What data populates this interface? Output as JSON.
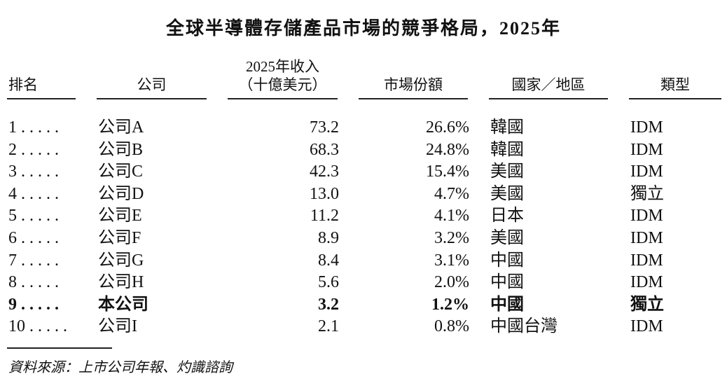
{
  "title": "全球半導體存儲產品市場的競爭格局，2025年",
  "table": {
    "headers": [
      "排名",
      "公司",
      [
        "2025年收入",
        "（十億美元）"
      ],
      "市場份額",
      "國家／地區",
      "類型"
    ],
    "rows": [
      [
        "1 . . . . .",
        "公司A",
        "73.2",
        "26.6%",
        "韓國",
        "IDM"
      ],
      [
        "2 . . . . .",
        "公司B",
        "68.3",
        "24.8%",
        "韓國",
        "IDM"
      ],
      [
        "3 . . . . .",
        "公司C",
        "42.3",
        "15.4%",
        "美國",
        "IDM"
      ],
      [
        "4 . . . . .",
        "公司D",
        "13.0",
        "4.7%",
        "美國",
        "獨立"
      ],
      [
        "5 . . . . .",
        "公司E",
        "11.2",
        "4.1%",
        "日本",
        "IDM"
      ],
      [
        "6 . . . . .",
        "公司F",
        "8.9",
        "3.2%",
        "美國",
        "IDM"
      ],
      [
        "7 . . . . .",
        "公司G",
        "8.4",
        "3.1%",
        "中國",
        "IDM"
      ],
      [
        "8 . . . . .",
        "公司H",
        "5.6",
        "2.0%",
        "中國",
        "IDM"
      ],
      [
        "9 . . . . .",
        "本公司",
        "3.2",
        "1.2%",
        "中國",
        "獨立"
      ],
      [
        "10 . . . . .",
        "公司I",
        "2.1",
        "0.8%",
        "中國台灣",
        "IDM"
      ]
    ],
    "bold_rows": [
      8
    ]
  },
  "source": "資料來源：上市公司年報、灼識諮詢"
}
